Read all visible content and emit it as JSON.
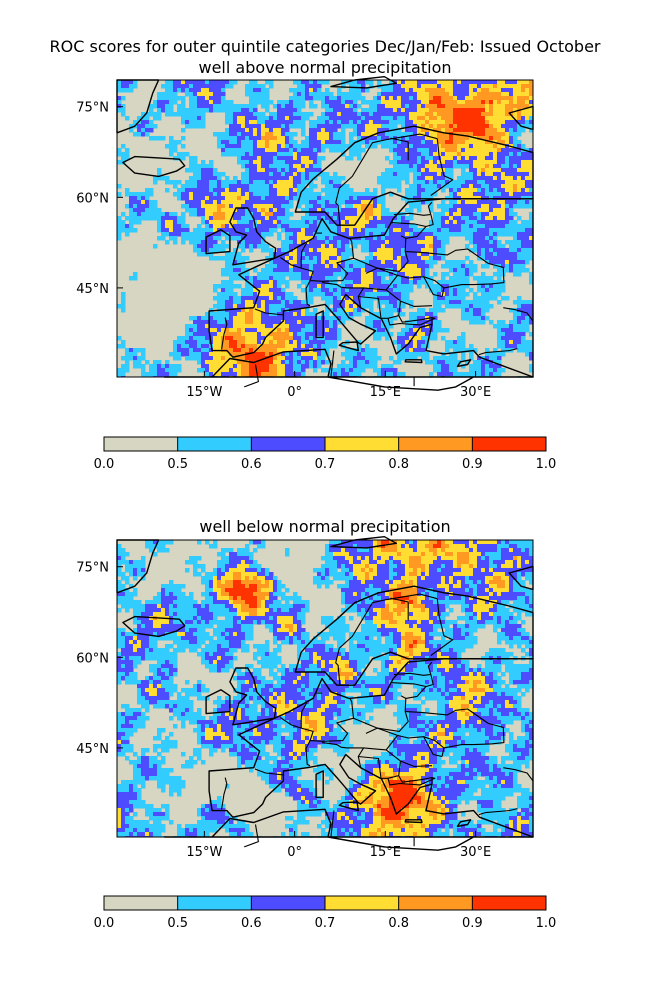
{
  "figure": {
    "suptitle": "ROC scores for outer quintile categories Dec/Jan/Feb: Issued October"
  },
  "colorscale": {
    "bounds": [
      0.0,
      0.5,
      0.6,
      0.7,
      0.8,
      0.9,
      1.0
    ],
    "tick_labels": [
      "0.0",
      "0.5",
      "0.6",
      "0.7",
      "0.8",
      "0.9",
      "1.0"
    ],
    "colors": [
      "#d6d6c2",
      "#33ccff",
      "#4d4dff",
      "#ffdd33",
      "#ff9922",
      "#ff3300"
    ]
  },
  "land_color": "#d6d6c2",
  "panels": [
    {
      "id": "above",
      "title": "well above normal precipitation",
      "lat_ticks": [
        "75°N",
        "60°N",
        "45°N"
      ],
      "lon_ticks": [
        "15°W",
        "0°",
        "15°E",
        "30°E"
      ],
      "seed": 11
    },
    {
      "id": "below",
      "title": "well below normal precipitation",
      "lat_ticks": [
        "75°N",
        "60°N",
        "45°N"
      ],
      "lon_ticks": [
        "15°W",
        "0°",
        "15°E",
        "30°E"
      ],
      "seed": 47
    }
  ]
}
